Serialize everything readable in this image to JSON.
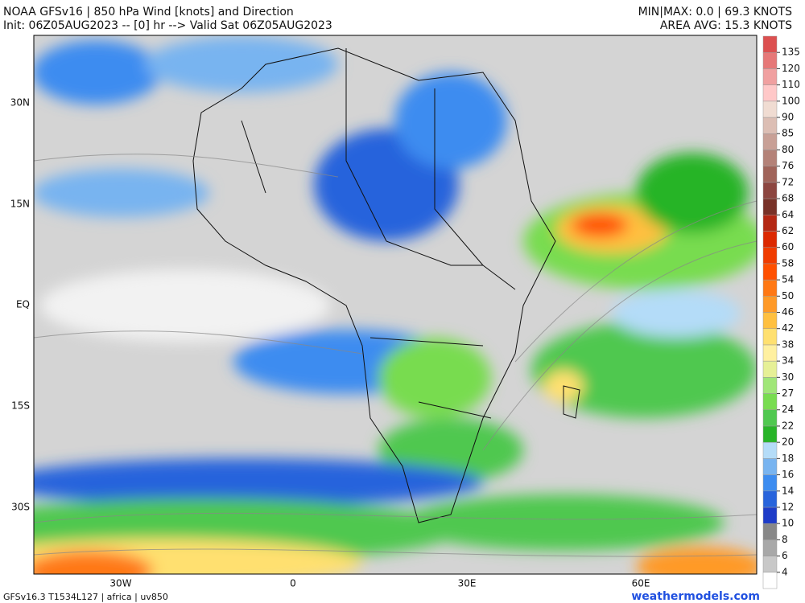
{
  "header": {
    "title": "NOAA GFSv16 | 850 hPa Wind [knots] and Direction",
    "init": "Init: 06Z05AUG2023 -- [0] hr --> Valid Sat 06Z05AUG2023",
    "minmax": "MIN|MAX: 0.0 | 69.3 KNOTS",
    "area_avg": "AREA AVG: 15.3 KNOTS"
  },
  "map": {
    "lat_labels": [
      "30N",
      "15N",
      "EQ",
      "15S",
      "30S"
    ],
    "lon_labels": [
      "30W",
      "0",
      "30E",
      "60E"
    ]
  },
  "colorbar": {
    "below_color": "#ffffff",
    "levels": [
      4,
      6,
      8,
      10,
      12,
      14,
      16,
      18,
      20,
      22,
      24,
      27,
      30,
      34,
      38,
      42,
      46,
      50,
      54,
      58,
      60,
      62,
      64,
      68,
      72,
      76,
      80,
      85,
      90,
      100,
      110,
      120,
      135
    ],
    "colors": [
      "#c8c8c8",
      "#a8a8a8",
      "#888888",
      "#1e3cc8",
      "#2864dc",
      "#3c8cf0",
      "#78b4f0",
      "#b4dcf8",
      "#28b428",
      "#50c850",
      "#78dc50",
      "#a0e678",
      "#e6f096",
      "#fff0a0",
      "#ffe070",
      "#ffc040",
      "#ff9a28",
      "#ff7814",
      "#ff5000",
      "#f03c00",
      "#dc2800",
      "#b42814",
      "#783228",
      "#8c4640",
      "#a0645a",
      "#b48278",
      "#c8a096",
      "#dcbeb4",
      "#f0dcd2",
      "#ffc8c8",
      "#f0a0a0",
      "#e67878",
      "#dc5050"
    ]
  },
  "footer": {
    "model": "GFSv16.3 T1534L127 | africa | uv850",
    "site": "weathermodels.com"
  }
}
